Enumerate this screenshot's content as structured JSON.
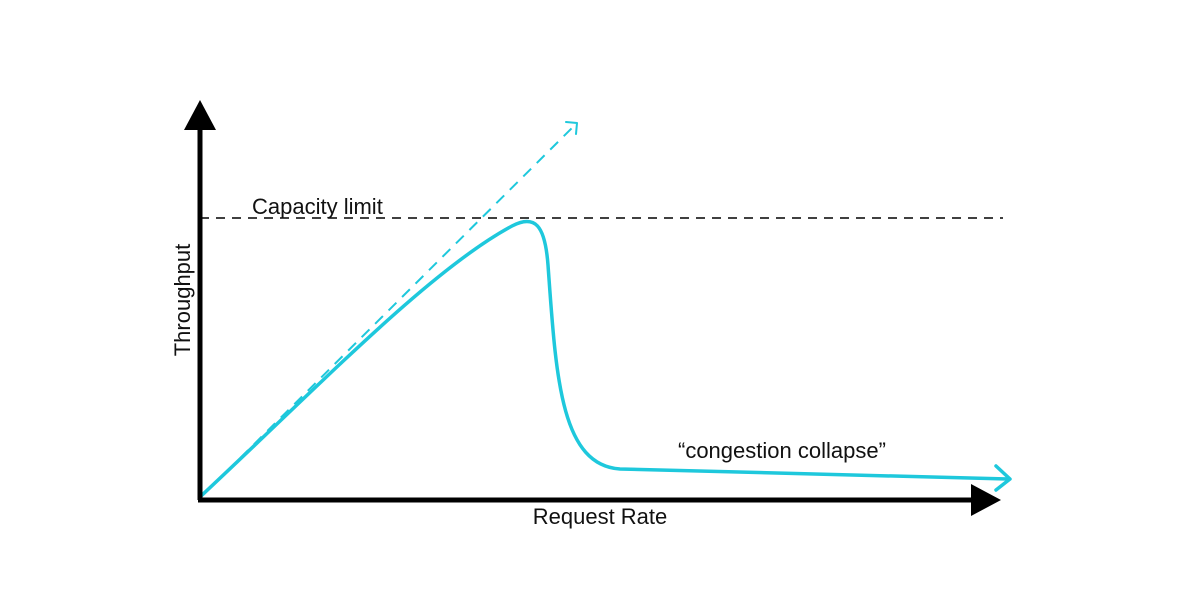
{
  "diagram": {
    "x_axis_label": "Request Rate",
    "y_axis_label": "Throughput",
    "capacity_label": "Capacity limit",
    "collapse_label": "“congestion collapse”"
  },
  "colors": {
    "curve": "#1ec8dc",
    "axis": "#000000",
    "text": "#111111"
  }
}
